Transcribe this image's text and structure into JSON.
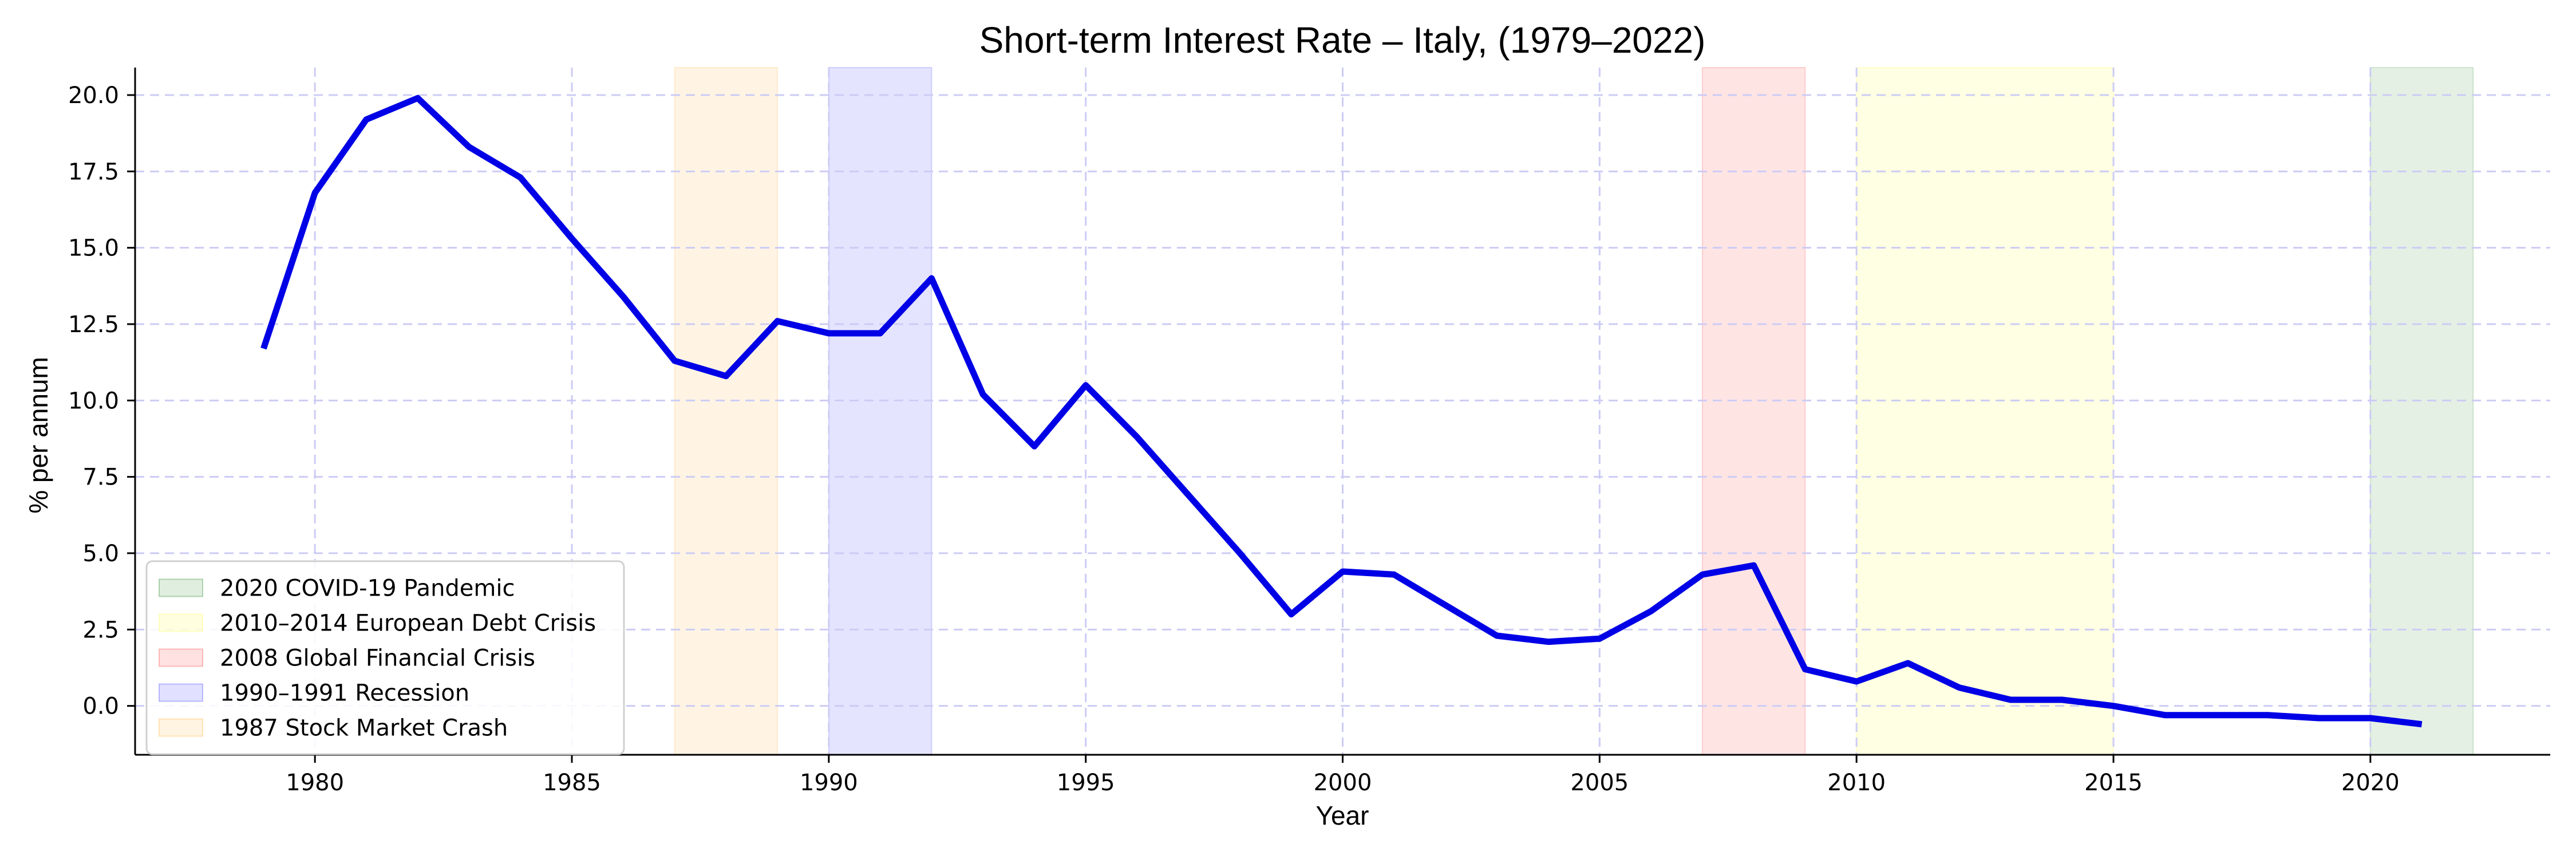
{
  "chart_data": {
    "type": "line",
    "title": "Short-term Interest Rate – Italy, (1979–2022)",
    "xlabel": "Year",
    "ylabel": "% per annum",
    "xlim": [
      1976.5,
      2023.5
    ],
    "ylim": [
      -1.6,
      20.9
    ],
    "x_ticks": [
      1980,
      1985,
      1990,
      1995,
      2000,
      2005,
      2010,
      2015,
      2020
    ],
    "x_tick_labels": [
      "1980",
      "1985",
      "1990",
      "1995",
      "2000",
      "2005",
      "2010",
      "2015",
      "2020"
    ],
    "y_ticks": [
      0,
      2.5,
      5,
      7.5,
      10,
      12.5,
      15,
      17.5,
      20
    ],
    "y_tick_labels": [
      "0.0",
      "2.5",
      "5.0",
      "7.5",
      "10.0",
      "12.5",
      "15.0",
      "17.5",
      "20.0"
    ],
    "grid": true,
    "legend_position": "lower-left",
    "series": [
      {
        "color": "#0000e6",
        "x": [
          1979,
          1980,
          1981,
          1982,
          1983,
          1984,
          1985,
          1986,
          1987,
          1988,
          1989,
          1990,
          1991,
          1992,
          1993,
          1994,
          1995,
          1996,
          1997,
          1998,
          1999,
          2000,
          2001,
          2002,
          2003,
          2004,
          2005,
          2006,
          2007,
          2008,
          2009,
          2010,
          2011,
          2012,
          2013,
          2014,
          2015,
          2016,
          2017,
          2018,
          2019,
          2020,
          2021
        ],
        "values": [
          11.7,
          16.8,
          19.2,
          19.9,
          18.3,
          17.3,
          15.3,
          13.4,
          11.3,
          10.8,
          12.6,
          12.2,
          12.2,
          14.0,
          10.2,
          8.5,
          10.5,
          8.8,
          6.9,
          5.0,
          3.0,
          4.4,
          4.3,
          3.3,
          2.3,
          2.1,
          2.2,
          3.1,
          4.3,
          4.6,
          1.2,
          0.8,
          1.4,
          0.6,
          0.2,
          0.2,
          0.0,
          -0.3,
          -0.3,
          -0.3,
          -0.4,
          -0.4,
          -0.6
        ]
      }
    ],
    "shaded_periods": [
      {
        "label": "2020 COVID-19 Pandemic",
        "start": 2020,
        "end": 2022,
        "color": "#2e8b2e",
        "opacity": 0.13
      },
      {
        "label": "2010–2014 European Debt Crisis",
        "start": 2010,
        "end": 2015,
        "color": "#ffff66",
        "opacity": 0.18
      },
      {
        "label": "2008 Global Financial Crisis",
        "start": 2007,
        "end": 2009,
        "color": "#ff4d4d",
        "opacity": 0.15
      },
      {
        "label": "1990–1991 Recession",
        "start": 1990,
        "end": 1992,
        "color": "#4d4dff",
        "opacity": 0.15
      },
      {
        "label": "1987 Stock Market Crash",
        "start": 1987,
        "end": 1989,
        "color": "#ffb84d",
        "opacity": 0.15
      }
    ]
  }
}
